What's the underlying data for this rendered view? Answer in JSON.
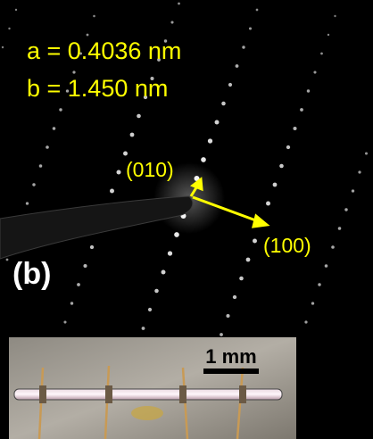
{
  "figure": {
    "lattice_a": "a = 0.4036 nm",
    "lattice_b": "b = 1.450 nm",
    "spot_010": "(010)",
    "spot_100": "(100)",
    "panel": "(b)",
    "scale_bar": "1 mm"
  }
}
